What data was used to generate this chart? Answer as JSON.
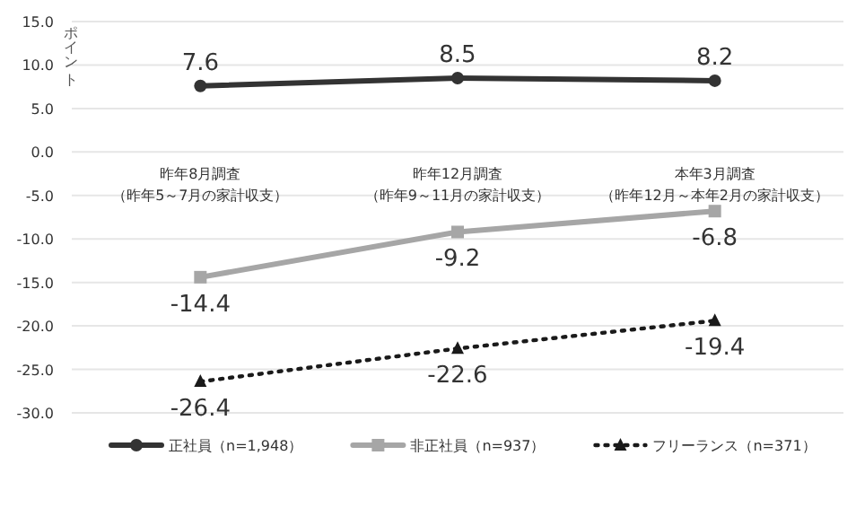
{
  "chart_data": {
    "type": "line",
    "ylabel": "ポイント",
    "categories": [
      "昨年8月調査（昨年5～7月の家計収支）",
      "昨年12月調査（昨年9～11月の家計収支）",
      "本年3月調査（昨年12月～本年2月の家計収支）"
    ],
    "series": [
      {
        "name": "正社員（n=1,948）",
        "color": "#333333",
        "values": [
          7.6,
          8.5,
          8.2
        ],
        "marker": "circle",
        "line_style": "solid"
      },
      {
        "name": "非正社員（n=937）",
        "color": "#a6a6a6",
        "values": [
          -14.4,
          -9.2,
          -6.8
        ],
        "marker": "square",
        "line_style": "solid"
      },
      {
        "name": "フリーランス（n=371）",
        "color": "#1a1a1a",
        "values": [
          -26.4,
          -22.6,
          -19.4
        ],
        "marker": "triangle",
        "line_style": "dotted"
      }
    ],
    "ylim": [
      -30,
      15
    ],
    "yticks": [
      {
        "value": 15,
        "label": "15.0"
      },
      {
        "value": 10,
        "label": "10.0"
      },
      {
        "value": 5,
        "label": "5.0"
      },
      {
        "value": 0,
        "label": "0.0"
      },
      {
        "value": -5,
        "label": "-5.0"
      },
      {
        "value": -10,
        "label": "-10.0"
      },
      {
        "value": -15,
        "label": "-15.0"
      },
      {
        "value": -20,
        "label": "-20.0"
      },
      {
        "value": -25,
        "label": "-25.0"
      },
      {
        "value": -30,
        "label": "-30.0"
      }
    ],
    "grid": "y",
    "legend": "bottom",
    "data_labels": true
  }
}
